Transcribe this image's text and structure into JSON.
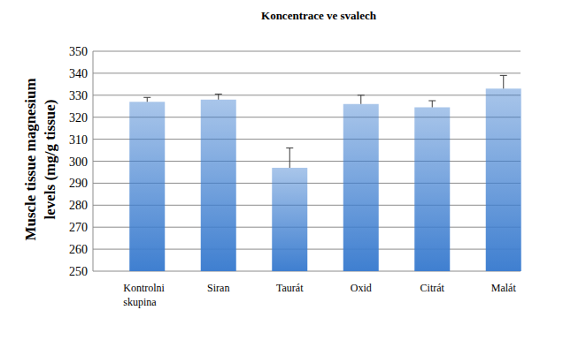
{
  "chart_data": {
    "type": "bar",
    "title": "Koncentrace ve svalech",
    "y_label": "Muscle tissue magnesium levels (mg/g tissue)",
    "categories": [
      "Kontrolni skupina",
      "Siran",
      "Taurát",
      "Oxid",
      "Citrát",
      "Malát"
    ],
    "values": [
      327,
      328,
      297,
      326,
      324.5,
      333
    ],
    "errors": [
      2,
      2.5,
      9,
      4,
      3,
      6
    ],
    "color": "#3f7fd0",
    "ylim": [
      250,
      350
    ],
    "yticks": [
      250,
      260,
      270,
      280,
      290,
      300,
      310,
      320,
      330,
      340,
      350
    ],
    "grid": true
  }
}
